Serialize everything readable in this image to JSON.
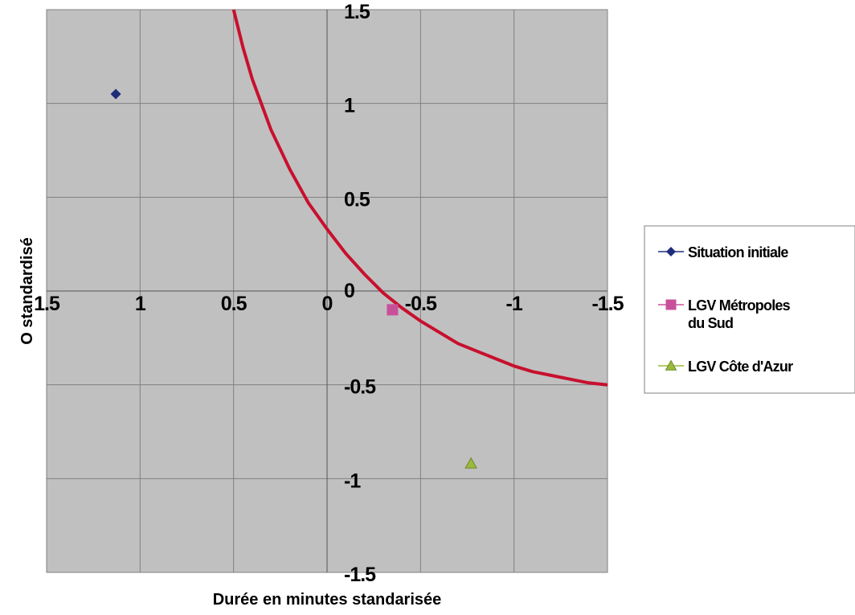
{
  "chart_data": {
    "type": "scatter",
    "title": "",
    "xlabel": "Durée en minutes standarisée",
    "ylabel": "O standardisé",
    "x_axis_reversed": true,
    "xlim": [
      1.5,
      -1.5
    ],
    "ylim": [
      -1.5,
      1.5
    ],
    "x_ticks": [
      1.5,
      1,
      0.5,
      0,
      -0.5,
      -1,
      -1.5
    ],
    "x_tick_labels": [
      "1.5",
      "1",
      "0.5",
      "0",
      "-0.5",
      "-1",
      "-1.5"
    ],
    "y_ticks": [
      1.5,
      1,
      0.5,
      0,
      -0.5,
      -1,
      -1.5
    ],
    "y_tick_labels": [
      "1.5",
      "1",
      "0.5",
      "0",
      "-0.5",
      "-1",
      "-1.5"
    ],
    "grid": true,
    "plot_background": "#c0c0c0",
    "legend_position": "right",
    "series": [
      {
        "name": "Situation initiale",
        "marker": "diamond",
        "color": "#1f2d7a",
        "x": [
          1.13
        ],
        "y": [
          1.05
        ]
      },
      {
        "name": "LGV Métropoles du Sud",
        "marker": "square",
        "color": "#c8509a",
        "x": [
          -0.35
        ],
        "y": [
          -0.1
        ]
      },
      {
        "name": "LGV Côte d'Azur",
        "marker": "triangle",
        "color": "#9aba3c",
        "x": [
          -0.77
        ],
        "y": [
          -0.92
        ]
      }
    ],
    "curve": {
      "color": "#c8102e",
      "x": [
        0.5,
        0.45,
        0.4,
        0.3,
        0.2,
        0.1,
        0.0,
        -0.1,
        -0.2,
        -0.3,
        -0.4,
        -0.5,
        -0.6,
        -0.7,
        -0.8,
        -0.9,
        -1.0,
        -1.1,
        -1.2,
        -1.3,
        -1.4,
        -1.5
      ],
      "y": [
        1.5,
        1.3,
        1.13,
        0.86,
        0.65,
        0.47,
        0.33,
        0.2,
        0.09,
        -0.01,
        -0.09,
        -0.16,
        -0.22,
        -0.28,
        -0.32,
        -0.36,
        -0.4,
        -0.43,
        -0.45,
        -0.47,
        -0.49,
        -0.5
      ]
    }
  },
  "legend": {
    "items": [
      {
        "lines": [
          "Situation initiale"
        ]
      },
      {
        "lines": [
          "LGV Métropoles",
          "du Sud"
        ]
      },
      {
        "lines": [
          "LGV Côte d'Azur"
        ]
      }
    ]
  }
}
